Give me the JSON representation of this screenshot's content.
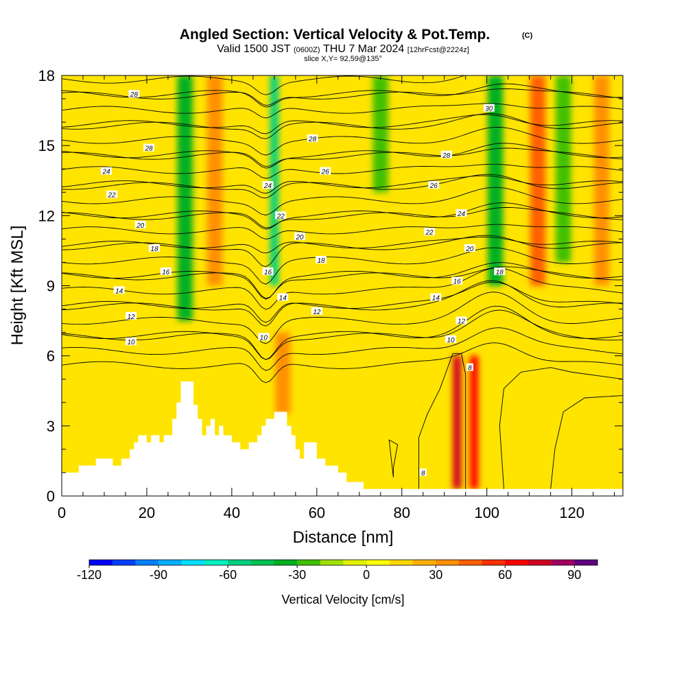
{
  "title": {
    "main": "Angled Section: Vertical Velocity & Pot.Temp.",
    "units_tag": "(C)",
    "valid_prefix": "Valid 1500 JST",
    "valid_zulu": "(0600Z)",
    "valid_date": "THU 7 Mar 2024",
    "forecast": "[12hrFcst@2224z]",
    "slice": "slice X,Y= 92,59@135°"
  },
  "chart_data": {
    "type": "heatmap",
    "xlabel": "Distance [nm]",
    "ylabel": "Height [Kft MSL]",
    "xlim": [
      0,
      132
    ],
    "ylim": [
      0,
      18
    ],
    "xticks": [
      0,
      20,
      40,
      60,
      80,
      100,
      120
    ],
    "yticks": [
      0,
      3,
      6,
      9,
      12,
      15,
      18
    ],
    "colorbar": {
      "label": "Vertical Velocity [cm/s]",
      "min": -120,
      "max": 100,
      "step": 10,
      "tick_values": [
        -120,
        -90,
        -60,
        -30,
        0,
        30,
        60,
        90
      ],
      "tick_labels": [
        "-120",
        "-90",
        "-60",
        "-30",
        "0",
        "30",
        "60",
        "90"
      ],
      "colors": [
        "#0000ff",
        "#0040ff",
        "#0080ff",
        "#00b0ff",
        "#00e0ff",
        "#00f0c0",
        "#00d080",
        "#00c050",
        "#00b020",
        "#40c000",
        "#a0e000",
        "#e0f000",
        "#ffff00",
        "#ffd800",
        "#ffb000",
        "#ff9000",
        "#ff6000",
        "#ff3000",
        "#ff0000",
        "#d00020",
        "#a00060",
        "#600080"
      ]
    },
    "vertical_velocity_features": [
      {
        "x": 29,
        "y_range": [
          7.5,
          18
        ],
        "value": -35
      },
      {
        "x": 36,
        "y_range": [
          9,
          18
        ],
        "value": 30
      },
      {
        "x": 50,
        "y_range": [
          9,
          18
        ],
        "value": -60
      },
      {
        "x": 52,
        "y_range": [
          3.5,
          7
        ],
        "value": 35
      },
      {
        "x": 75,
        "y_range": [
          13,
          18
        ],
        "value": -25
      },
      {
        "x": 93,
        "y_range": [
          0.3,
          6
        ],
        "value": 70
      },
      {
        "x": 97,
        "y_range": [
          0.3,
          6
        ],
        "value": 65
      },
      {
        "x": 102,
        "y_range": [
          9,
          18
        ],
        "value": -35
      },
      {
        "x": 112,
        "y_range": [
          9,
          18
        ],
        "value": 40
      },
      {
        "x": 118,
        "y_range": [
          10,
          18
        ],
        "value": -25
      },
      {
        "x": 127,
        "y_range": [
          9,
          18
        ],
        "value": 30
      }
    ],
    "potential_temperature_contours": {
      "interval": 2,
      "labels": [
        {
          "text": "28",
          "x": 17,
          "y": 17.2
        },
        {
          "text": "28",
          "x": 20.5,
          "y": 14.9
        },
        {
          "text": "24",
          "x": 10.5,
          "y": 13.9
        },
        {
          "text": "22",
          "x": 11.8,
          "y": 12.9
        },
        {
          "text": "20",
          "x": 18.5,
          "y": 11.6
        },
        {
          "text": "18",
          "x": 21.8,
          "y": 10.6
        },
        {
          "text": "16",
          "x": 24.5,
          "y": 9.6
        },
        {
          "text": "14",
          "x": 13.5,
          "y": 8.8
        },
        {
          "text": "12",
          "x": 16.3,
          "y": 7.7
        },
        {
          "text": "10",
          "x": 16.3,
          "y": 6.6
        },
        {
          "text": "28",
          "x": 59,
          "y": 15.3
        },
        {
          "text": "26",
          "x": 62,
          "y": 13.9
        },
        {
          "text": "24",
          "x": 48.5,
          "y": 13.3
        },
        {
          "text": "22",
          "x": 51.5,
          "y": 12.0
        },
        {
          "text": "20",
          "x": 56,
          "y": 11.1
        },
        {
          "text": "18",
          "x": 61,
          "y": 10.1
        },
        {
          "text": "16",
          "x": 48.5,
          "y": 9.6
        },
        {
          "text": "14",
          "x": 52,
          "y": 8.5
        },
        {
          "text": "12",
          "x": 60,
          "y": 7.9
        },
        {
          "text": "10",
          "x": 47.5,
          "y": 6.8
        },
        {
          "text": "30",
          "x": 100.5,
          "y": 16.6
        },
        {
          "text": "28",
          "x": 90.5,
          "y": 14.6
        },
        {
          "text": "26",
          "x": 87.5,
          "y": 13.3
        },
        {
          "text": "24",
          "x": 94,
          "y": 12.1
        },
        {
          "text": "22",
          "x": 86.5,
          "y": 11.3
        },
        {
          "text": "20",
          "x": 96,
          "y": 10.6
        },
        {
          "text": "18",
          "x": 103,
          "y": 9.6
        },
        {
          "text": "16",
          "x": 93,
          "y": 9.2
        },
        {
          "text": "14",
          "x": 88,
          "y": 8.5
        },
        {
          "text": "12",
          "x": 94,
          "y": 7.5
        },
        {
          "text": "10",
          "x": 91.5,
          "y": 6.7
        },
        {
          "text": "8",
          "x": 96,
          "y": 5.5
        },
        {
          "text": "8",
          "x": 85,
          "y": 1.0
        }
      ]
    },
    "terrain": [
      [
        0,
        1.0
      ],
      [
        4,
        1.0
      ],
      [
        4,
        1.3
      ],
      [
        8,
        1.3
      ],
      [
        8,
        1.6
      ],
      [
        12,
        1.6
      ],
      [
        12,
        1.3
      ],
      [
        14,
        1.3
      ],
      [
        14,
        1.6
      ],
      [
        16,
        1.6
      ],
      [
        16,
        2.0
      ],
      [
        17,
        2.0
      ],
      [
        17,
        2.3
      ],
      [
        18,
        2.3
      ],
      [
        18,
        2.6
      ],
      [
        20,
        2.6
      ],
      [
        20,
        2.3
      ],
      [
        21,
        2.3
      ],
      [
        21,
        2.6
      ],
      [
        23,
        2.6
      ],
      [
        23,
        2.3
      ],
      [
        24,
        2.3
      ],
      [
        24,
        2.6
      ],
      [
        26,
        2.6
      ],
      [
        26,
        3.3
      ],
      [
        27,
        3.3
      ],
      [
        27,
        4.0
      ],
      [
        28,
        4.0
      ],
      [
        28,
        4.9
      ],
      [
        31,
        4.9
      ],
      [
        31,
        3.9
      ],
      [
        32,
        3.9
      ],
      [
        32,
        3.3
      ],
      [
        33,
        3.3
      ],
      [
        33,
        2.6
      ],
      [
        34,
        2.6
      ],
      [
        34,
        3.0
      ],
      [
        35,
        3.0
      ],
      [
        35,
        3.3
      ],
      [
        36,
        3.3
      ],
      [
        36,
        2.6
      ],
      [
        37,
        2.6
      ],
      [
        37,
        3.0
      ],
      [
        38,
        3.0
      ],
      [
        38,
        2.6
      ],
      [
        40,
        2.6
      ],
      [
        40,
        2.3
      ],
      [
        42,
        2.3
      ],
      [
        42,
        2.0
      ],
      [
        44,
        2.0
      ],
      [
        44,
        2.3
      ],
      [
        46,
        2.3
      ],
      [
        46,
        2.6
      ],
      [
        47,
        2.6
      ],
      [
        47,
        3.0
      ],
      [
        48,
        3.0
      ],
      [
        48,
        3.3
      ],
      [
        50,
        3.3
      ],
      [
        50,
        3.6
      ],
      [
        53,
        3.6
      ],
      [
        53,
        3.0
      ],
      [
        54,
        3.0
      ],
      [
        54,
        2.6
      ],
      [
        55,
        2.6
      ],
      [
        55,
        2.0
      ],
      [
        56,
        2.0
      ],
      [
        56,
        1.6
      ],
      [
        57,
        1.6
      ],
      [
        57,
        2.3
      ],
      [
        60,
        2.3
      ],
      [
        60,
        1.6
      ],
      [
        62,
        1.6
      ],
      [
        62,
        1.3
      ],
      [
        65,
        1.3
      ],
      [
        65,
        1.0
      ],
      [
        67,
        1.0
      ],
      [
        67,
        0.6
      ],
      [
        71,
        0.6
      ],
      [
        71,
        0.3
      ],
      [
        132,
        0.3
      ]
    ]
  }
}
